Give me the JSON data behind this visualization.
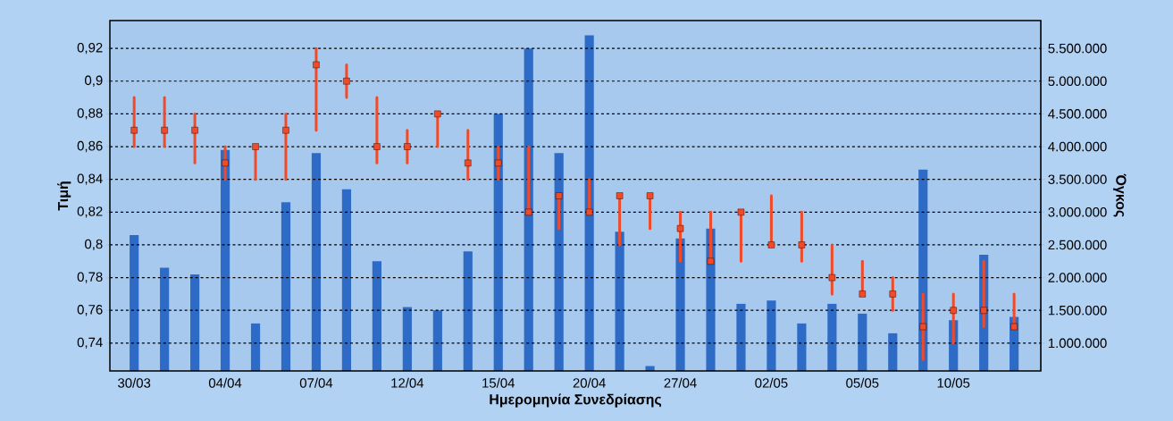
{
  "chart_data": {
    "type": "bar",
    "xlabel": "Ημερομηνία Συνεδρίασης",
    "ylabel": "Τιμή",
    "y2label": "Όγκος",
    "categories": [
      "30/03",
      null,
      null,
      "04/04",
      null,
      null,
      "07/04",
      null,
      null,
      "12/04",
      null,
      null,
      "15/04",
      null,
      null,
      "20/04",
      null,
      null,
      "27/04",
      null,
      null,
      "02/05",
      null,
      null,
      "05/05",
      null,
      null,
      "10/05",
      null,
      null
    ],
    "series": [
      {
        "axis": "y2",
        "color": "#2e6bc6",
        "values": [
          2650000,
          2150000,
          2050000,
          3950000,
          1300000,
          3150000,
          3900000,
          3350000,
          2250000,
          1550000,
          1500000,
          2400000,
          4500000,
          5500000,
          3900000,
          5700000,
          2700000,
          650000,
          2600000,
          2750000,
          1600000,
          1650000,
          1300000,
          1600000,
          1450000,
          1150000,
          3650000,
          1350000,
          2350000,
          1400000
        ]
      },
      {
        "type": "scatter",
        "color": "#f04a28",
        "values": [
          0.87,
          0.87,
          0.87,
          0.85,
          0.86,
          0.87,
          0.91,
          0.9,
          0.86,
          0.86,
          0.88,
          0.85,
          0.85,
          0.82,
          0.83,
          0.82,
          0.83,
          0.83,
          0.81,
          0.79,
          0.82,
          0.8,
          0.8,
          0.78,
          0.77,
          0.77,
          0.75,
          0.76,
          0.76,
          0.75
        ],
        "errors": [
          [
            0.86,
            0.89
          ],
          [
            0.86,
            0.89
          ],
          [
            0.85,
            0.88
          ],
          [
            0.84,
            0.86
          ],
          [
            0.84,
            0.86
          ],
          [
            0.84,
            0.88
          ],
          [
            0.87,
            0.92
          ],
          [
            0.89,
            0.91
          ],
          [
            0.85,
            0.89
          ],
          [
            0.85,
            0.87
          ],
          [
            0.86,
            0.88
          ],
          [
            0.84,
            0.87
          ],
          [
            0.84,
            0.86
          ],
          [
            0.82,
            0.86
          ],
          [
            0.81,
            0.83
          ],
          [
            0.82,
            0.84
          ],
          [
            0.8,
            0.83
          ],
          [
            0.81,
            0.83
          ],
          [
            0.79,
            0.82
          ],
          [
            0.79,
            0.82
          ],
          [
            0.79,
            0.82
          ],
          [
            0.8,
            0.83
          ],
          [
            0.79,
            0.82
          ],
          [
            0.77,
            0.8
          ],
          [
            0.77,
            0.79
          ],
          [
            0.76,
            0.78
          ],
          [
            0.73,
            0.77
          ],
          [
            0.74,
            0.77
          ],
          [
            0.75,
            0.79
          ],
          [
            0.75,
            0.77
          ]
        ]
      }
    ],
    "ylim": [
      0.723,
      0.937
    ],
    "yticks": [
      {
        "value": 0.74,
        "label": "0,74"
      },
      {
        "value": 0.76,
        "label": "0,76"
      },
      {
        "value": 0.78,
        "label": "0,78"
      },
      {
        "value": 0.8,
        "label": "0,8"
      },
      {
        "value": 0.82,
        "label": "0,82"
      },
      {
        "value": 0.84,
        "label": "0,84"
      },
      {
        "value": 0.86,
        "label": "0,86"
      },
      {
        "value": 0.88,
        "label": "0,88"
      },
      {
        "value": 0.9,
        "label": "0,9"
      },
      {
        "value": 0.92,
        "label": "0,92"
      }
    ],
    "y2lim": [
      575000,
      5925000
    ],
    "y2ticks": [
      {
        "value": 1000000,
        "label": "1.000.000"
      },
      {
        "value": 1500000,
        "label": "1.500.000"
      },
      {
        "value": 2000000,
        "label": "2.000.000"
      },
      {
        "value": 2500000,
        "label": "2.500.000"
      },
      {
        "value": 3000000,
        "label": "3.000.000"
      },
      {
        "value": 3500000,
        "label": "3.500.000"
      },
      {
        "value": 4000000,
        "label": "4.000.000"
      },
      {
        "value": 4500000,
        "label": "4.500.000"
      },
      {
        "value": 5000000,
        "label": "5.000.000"
      },
      {
        "value": 5500000,
        "label": "5.500.000"
      }
    ],
    "grid": "y",
    "line_style": "dashed",
    "marker": "square"
  }
}
